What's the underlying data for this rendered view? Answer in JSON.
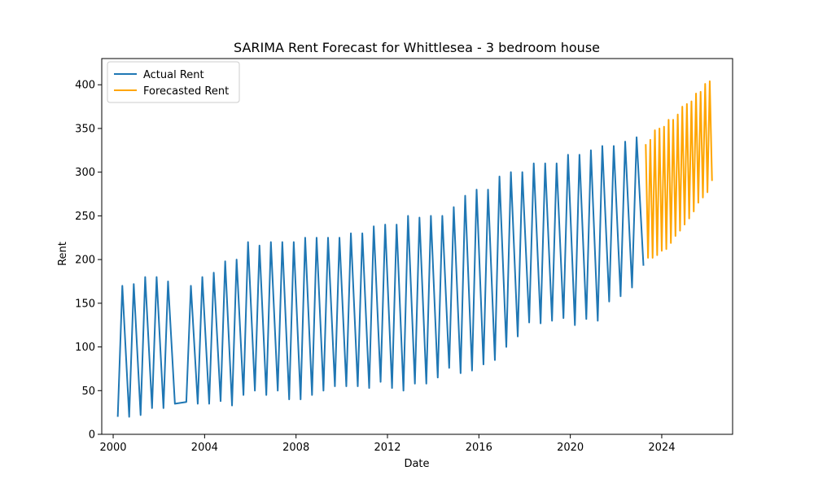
{
  "chart_data": {
    "type": "line",
    "title": "SARIMA Rent Forecast for Whittlesea - 3 bedroom house",
    "xlabel": "Date",
    "ylabel": "Rent",
    "xlim": [
      1999.5,
      2027.1
    ],
    "ylim": [
      0,
      430
    ],
    "x_ticks": [
      2000,
      2004,
      2008,
      2012,
      2016,
      2020,
      2024
    ],
    "x_tick_labels": [
      "2000",
      "2004",
      "2008",
      "2012",
      "2016",
      "2020",
      "2024"
    ],
    "y_ticks": [
      0,
      50,
      100,
      150,
      200,
      250,
      300,
      350,
      400
    ],
    "y_tick_labels": [
      "0",
      "50",
      "100",
      "150",
      "200",
      "250",
      "300",
      "350",
      "400"
    ],
    "grid": false,
    "legend_position": "upper-left",
    "series": [
      {
        "name": "Actual Rent",
        "color": "#1f77b4",
        "x": [
          2000.2,
          2000.4,
          2000.7,
          2000.9,
          2001.2,
          2001.4,
          2001.7,
          2001.9,
          2002.2,
          2002.4,
          2002.7,
          2003.2,
          2003.4,
          2003.7,
          2003.9,
          2004.2,
          2004.4,
          2004.7,
          2004.9,
          2005.2,
          2005.4,
          2005.7,
          2005.9,
          2006.2,
          2006.4,
          2006.7,
          2006.9,
          2007.2,
          2007.4,
          2007.7,
          2007.9,
          2008.2,
          2008.4,
          2008.7,
          2008.9,
          2009.2,
          2009.4,
          2009.7,
          2009.9,
          2010.2,
          2010.4,
          2010.7,
          2010.9,
          2011.2,
          2011.4,
          2011.7,
          2011.9,
          2012.2,
          2012.4,
          2012.7,
          2012.9,
          2013.2,
          2013.4,
          2013.7,
          2013.9,
          2014.2,
          2014.4,
          2014.7,
          2014.9,
          2015.2,
          2015.4,
          2015.7,
          2015.9,
          2016.2,
          2016.4,
          2016.7,
          2016.9,
          2017.2,
          2017.4,
          2017.7,
          2017.9,
          2018.2,
          2018.4,
          2018.7,
          2018.9,
          2019.2,
          2019.4,
          2019.7,
          2019.9,
          2020.2,
          2020.4,
          2020.7,
          2020.9,
          2021.2,
          2021.4,
          2021.7,
          2021.9,
          2022.2,
          2022.4,
          2022.7,
          2022.9,
          2023.2
        ],
        "values": [
          20,
          170,
          20,
          172,
          22,
          180,
          30,
          180,
          30,
          175,
          35,
          37,
          170,
          35,
          180,
          35,
          185,
          38,
          198,
          33,
          200,
          45,
          220,
          50,
          216,
          45,
          220,
          50,
          220,
          40,
          220,
          40,
          225,
          45,
          225,
          50,
          225,
          55,
          225,
          55,
          230,
          55,
          230,
          53,
          238,
          60,
          240,
          53,
          240,
          50,
          250,
          58,
          248,
          58,
          250,
          65,
          250,
          76,
          260,
          70,
          273,
          73,
          280,
          80,
          280,
          85,
          295,
          100,
          300,
          112,
          300,
          128,
          310,
          127,
          310,
          130,
          310,
          133,
          320,
          125,
          320,
          132,
          325,
          130,
          330,
          152,
          330,
          158,
          335,
          168,
          340,
          193
        ]
      },
      {
        "name": "Forecasted Rent",
        "color": "#ffa500",
        "x": [
          2023.3,
          2023.4,
          2023.5,
          2023.6,
          2023.7,
          2023.8,
          2023.9,
          2024.0,
          2024.1,
          2024.2,
          2024.3,
          2024.4,
          2024.5,
          2024.6,
          2024.7,
          2024.8,
          2024.9,
          2025.0,
          2025.1,
          2025.2,
          2025.3,
          2025.4,
          2025.5,
          2025.6,
          2025.7,
          2025.8,
          2025.9,
          2026.0,
          2026.1,
          2026.2
        ],
        "values": [
          332,
          202,
          337,
          202,
          348,
          205,
          350,
          210,
          352,
          212,
          360,
          219,
          360,
          227,
          366,
          233,
          375,
          240,
          378,
          247,
          381,
          255,
          390,
          265,
          392,
          271,
          401,
          277,
          404,
          290
        ]
      }
    ]
  }
}
